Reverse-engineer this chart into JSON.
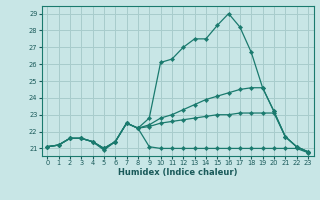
{
  "xlabel": "Humidex (Indice chaleur)",
  "xlim": [
    -0.5,
    23.5
  ],
  "ylim": [
    20.55,
    29.45
  ],
  "yticks": [
    21,
    22,
    23,
    24,
    25,
    26,
    27,
    28,
    29
  ],
  "xticks": [
    0,
    1,
    2,
    3,
    4,
    5,
    6,
    7,
    8,
    9,
    10,
    11,
    12,
    13,
    14,
    15,
    16,
    17,
    18,
    19,
    20,
    21,
    22,
    23
  ],
  "bg_color": "#c8e6e6",
  "line_color": "#1a7a6e",
  "grid_color": "#a8cccc",
  "lines": [
    {
      "x": [
        0,
        1,
        2,
        3,
        4,
        5,
        6,
        7,
        8,
        9,
        10,
        11,
        12,
        13,
        14,
        15,
        16,
        17,
        18,
        19,
        20,
        21,
        22,
        23
      ],
      "y": [
        21.1,
        21.2,
        21.6,
        21.6,
        21.4,
        21.0,
        21.4,
        22.5,
        22.2,
        22.8,
        26.1,
        26.3,
        27.0,
        27.5,
        27.5,
        28.3,
        29.0,
        28.2,
        26.7,
        24.6,
        23.2,
        21.7,
        21.1,
        20.8
      ]
    },
    {
      "x": [
        0,
        1,
        2,
        3,
        4,
        5,
        6,
        7,
        8,
        9,
        10,
        11,
        12,
        13,
        14,
        15,
        16,
        17,
        18,
        19,
        20,
        21,
        22,
        23
      ],
      "y": [
        21.1,
        21.2,
        21.6,
        21.6,
        21.4,
        21.0,
        21.4,
        22.5,
        22.2,
        22.4,
        22.8,
        23.0,
        23.3,
        23.6,
        23.9,
        24.1,
        24.3,
        24.5,
        24.6,
        24.6,
        23.2,
        21.7,
        21.1,
        20.8
      ]
    },
    {
      "x": [
        0,
        1,
        2,
        3,
        4,
        5,
        6,
        7,
        8,
        9,
        10,
        11,
        12,
        13,
        14,
        15,
        16,
        17,
        18,
        19,
        20,
        21,
        22,
        23
      ],
      "y": [
        21.1,
        21.2,
        21.6,
        21.6,
        21.4,
        21.0,
        21.4,
        22.5,
        22.2,
        22.3,
        22.5,
        22.6,
        22.7,
        22.8,
        22.9,
        23.0,
        23.0,
        23.1,
        23.1,
        23.1,
        23.1,
        21.7,
        21.1,
        20.8
      ]
    },
    {
      "x": [
        0,
        1,
        2,
        3,
        4,
        5,
        6,
        7,
        8,
        9,
        10,
        11,
        12,
        13,
        14,
        15,
        16,
        17,
        18,
        19,
        20,
        21,
        22,
        23
      ],
      "y": [
        21.1,
        21.2,
        21.6,
        21.6,
        21.4,
        20.9,
        21.4,
        22.5,
        22.2,
        21.1,
        21.0,
        21.0,
        21.0,
        21.0,
        21.0,
        21.0,
        21.0,
        21.0,
        21.0,
        21.0,
        21.0,
        21.0,
        21.0,
        20.75
      ]
    }
  ]
}
